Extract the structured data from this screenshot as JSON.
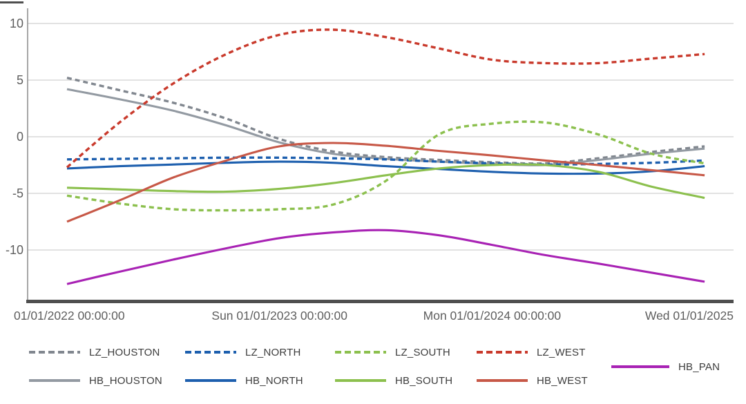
{
  "chart_data": {
    "type": "line",
    "title": "",
    "grid": "horizontal",
    "legend_position": "bottom",
    "grid_color": "#d9d9d9",
    "bottom_axis_color": "#4f4f4f",
    "y_axis_line_color": "#8f8f8f",
    "tick_text_color": "#5e5e5e",
    "x_axis": {
      "tick_labels": [
        "01/01/2022 00:00:00",
        "Sun 01/01/2023 00:00:00",
        "Mon 01/01/2024 00:00:00",
        "Wed 01/01/2025"
      ],
      "tick_values_years_since_2022": [
        0,
        1,
        2,
        3
      ]
    },
    "y_axis": {
      "tick_labels": [
        "10",
        "5",
        "0",
        "-5",
        "-10"
      ],
      "tick_values": [
        10,
        5,
        0,
        -5,
        -10
      ],
      "range": [
        -14.6,
        11.3
      ]
    },
    "x_unit": "years since 2022-01-01",
    "x": [
      0,
      0.25,
      0.5,
      0.75,
      1.0,
      1.25,
      1.5,
      1.75,
      2.0,
      2.25,
      2.5,
      2.75,
      3.0
    ],
    "series": [
      {
        "name": "LZ_HOUSTON",
        "style": "dashed",
        "color": "#81878f",
        "values": [
          5.2,
          4.1,
          3.0,
          1.6,
          -0.2,
          -1.3,
          -1.8,
          -2.05,
          -2.25,
          -2.35,
          -1.9,
          -1.35,
          -0.85
        ]
      },
      {
        "name": "HB_HOUSTON",
        "style": "solid",
        "color": "#939aa2",
        "values": [
          4.2,
          3.3,
          2.3,
          1.0,
          -0.5,
          -1.5,
          -1.95,
          -2.2,
          -2.4,
          -2.5,
          -2.05,
          -1.5,
          -1.05
        ]
      },
      {
        "name": "LZ_NORTH",
        "style": "dashed",
        "color": "#1d5fae",
        "values": [
          -2.0,
          -1.95,
          -1.9,
          -1.85,
          -1.85,
          -1.9,
          -2.0,
          -2.2,
          -2.35,
          -2.45,
          -2.4,
          -2.3,
          -2.1
        ]
      },
      {
        "name": "HB_NORTH",
        "style": "solid",
        "color": "#1d5fae",
        "values": [
          -2.8,
          -2.6,
          -2.45,
          -2.3,
          -2.2,
          -2.3,
          -2.6,
          -2.85,
          -3.1,
          -3.25,
          -3.25,
          -3.05,
          -2.6
        ]
      },
      {
        "name": "LZ_SOUTH",
        "style": "dashed",
        "color": "#8cc04e",
        "values": [
          -5.2,
          -5.9,
          -6.4,
          -6.5,
          -6.4,
          -6.0,
          -3.9,
          0.2,
          1.15,
          1.25,
          0.2,
          -1.5,
          -2.35
        ]
      },
      {
        "name": "HB_SOUTH",
        "style": "solid",
        "color": "#8cc04e",
        "values": [
          -4.5,
          -4.65,
          -4.8,
          -4.85,
          -4.6,
          -4.1,
          -3.4,
          -2.8,
          -2.5,
          -2.5,
          -3.1,
          -4.4,
          -5.4
        ]
      },
      {
        "name": "LZ_WEST",
        "style": "dashed",
        "color": "#c93a2c",
        "values": [
          -2.7,
          1.3,
          4.7,
          7.3,
          9.0,
          9.45,
          8.8,
          7.8,
          6.8,
          6.5,
          6.5,
          6.9,
          7.3
        ]
      },
      {
        "name": "HB_WEST",
        "style": "solid",
        "color": "#c75847",
        "values": [
          -7.5,
          -5.6,
          -3.6,
          -2.1,
          -0.85,
          -0.55,
          -0.8,
          -1.25,
          -1.65,
          -2.1,
          -2.5,
          -2.95,
          -3.4
        ]
      },
      {
        "name": "HB_PAN",
        "style": "solid",
        "color": "#a822b4",
        "values": [
          -13.0,
          -11.9,
          -10.85,
          -9.85,
          -8.95,
          -8.45,
          -8.25,
          -8.7,
          -9.55,
          -10.45,
          -11.2,
          -12.0,
          -12.8
        ]
      }
    ],
    "legend_rows": [
      [
        "LZ_HOUSTON",
        "LZ_NORTH",
        "LZ_SOUTH",
        "LZ_WEST"
      ],
      [
        "HB_HOUSTON",
        "HB_NORTH",
        "HB_SOUTH",
        "HB_WEST"
      ]
    ],
    "legend_side_entry": "HB_PAN"
  }
}
